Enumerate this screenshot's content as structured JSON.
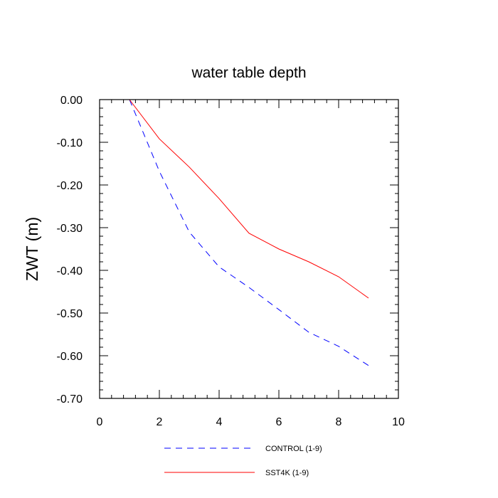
{
  "chart_data": {
    "type": "line",
    "title": "water table depth",
    "xlabel": "",
    "ylabel": "ZWT  (m)",
    "xlim": [
      0,
      10
    ],
    "ylim": [
      -0.7,
      0.0
    ],
    "x_ticks": [
      "0",
      "2",
      "4",
      "6",
      "8",
      "10"
    ],
    "y_ticks": [
      "0.00",
      "-0.10",
      "-0.20",
      "-0.30",
      "-0.40",
      "-0.50",
      "-0.60",
      "-0.70"
    ],
    "grid": false,
    "legend_position": "bottom",
    "series": [
      {
        "name": "CONTROL (1-9)",
        "color": "#0000ff",
        "style": "dashed",
        "x": [
          1,
          2,
          3,
          4,
          5,
          6,
          7,
          8,
          9
        ],
        "y": [
          0.0,
          -0.168,
          -0.31,
          -0.392,
          -0.44,
          -0.492,
          -0.545,
          -0.578,
          -0.623
        ]
      },
      {
        "name": "SST4K (1-9)",
        "color": "#ff0000",
        "style": "solid",
        "x": [
          1,
          2,
          3,
          4,
          5,
          6,
          7,
          8,
          9
        ],
        "y": [
          0.0,
          -0.092,
          -0.158,
          -0.232,
          -0.313,
          -0.35,
          -0.38,
          -0.415,
          -0.465
        ]
      }
    ]
  }
}
